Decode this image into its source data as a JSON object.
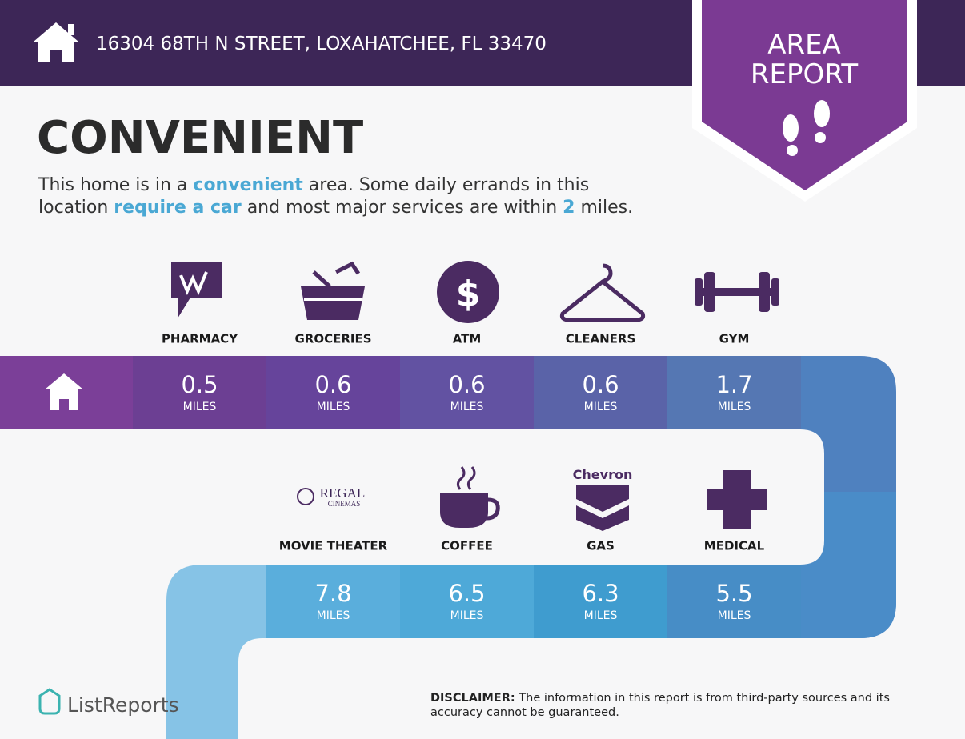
{
  "header": {
    "address": "16304 68TH N STREET, LOXAHATCHEE, FL 33470"
  },
  "badge": {
    "lines": [
      "AREA",
      "REPORT"
    ]
  },
  "title": "CONVENIENT",
  "description": {
    "lines": [
      [
        {
          "text": "This home is in a ",
          "highlight": false
        },
        {
          "text": "convenient",
          "highlight": true
        },
        {
          "text": " area. Some daily errands in this",
          "highlight": false
        }
      ],
      [
        {
          "text": "location ",
          "highlight": false
        },
        {
          "text": "require a car",
          "highlight": true
        },
        {
          "text": " and most major services are within ",
          "highlight": false
        },
        {
          "text": "2",
          "highlight": true
        },
        {
          "text": " miles.",
          "highlight": false
        }
      ]
    ]
  },
  "distance_unit": "MILES",
  "rows": [
    [
      {
        "label": "PHARMACY",
        "distance": "0.5"
      },
      {
        "label": "GROCERIES",
        "distance": "0.6"
      },
      {
        "label": "ATM",
        "distance": "0.6",
        "icon_text": "$"
      },
      {
        "label": "CLEANERS",
        "distance": "0.6"
      },
      {
        "label": "GYM",
        "distance": "1.7"
      }
    ],
    [
      {
        "label": "MOVIE THEATER",
        "distance": "7.8",
        "icon_text": [
          "REGAL",
          "CINEMAS"
        ]
      },
      {
        "label": "COFFEE",
        "distance": "6.5"
      },
      {
        "label": "GAS",
        "distance": "6.3",
        "icon_text": "Chevron"
      },
      {
        "label": "MEDICAL",
        "distance": "5.5"
      }
    ]
  ],
  "footer": {
    "logo": "ListReports",
    "disclaimer_label": "DISCLAIMER:",
    "disclaimer_text": " The information in this report is from third-party sources and its accuracy cannot be guaranteed."
  }
}
